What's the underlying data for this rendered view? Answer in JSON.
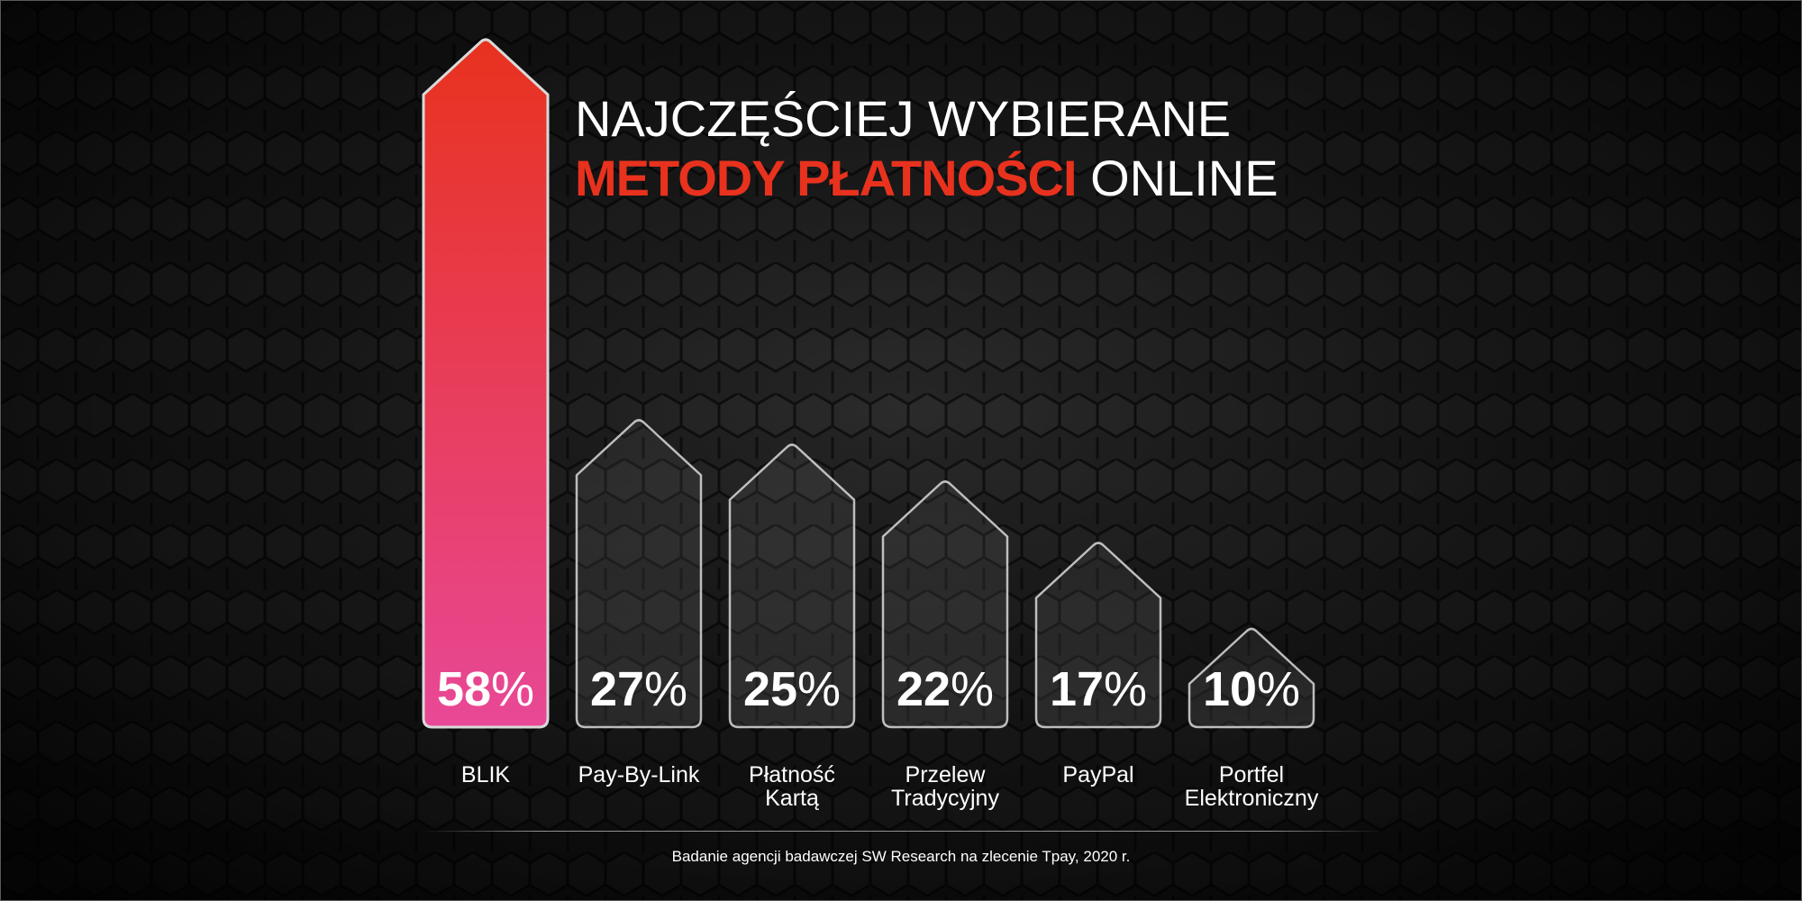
{
  "title": {
    "line1": "NAJCZĘŚCIEJ WYBIERANE",
    "line2_accent": "METODY PŁATNOŚCI",
    "line2_plain": "ONLINE"
  },
  "source_note": "Badanie agencji badawczej SW Research na zlecenie Tpay, 2020 r.",
  "colors": {
    "accent": "#e8321e",
    "highlight_top": "#e8321e",
    "highlight_bottom": "#e84896",
    "bar_outline": "#d9d9d9",
    "text": "#ffffff"
  },
  "chart_data": {
    "type": "bar",
    "categories": [
      [
        "BLIK"
      ],
      [
        "Pay-By-Link"
      ],
      [
        "Płatność",
        "Kartą"
      ],
      [
        "Przelew",
        "Tradycyjny"
      ],
      [
        "PayPal"
      ],
      [
        "Portfel",
        "Elektroniczny"
      ]
    ],
    "values": [
      58,
      27,
      25,
      22,
      17,
      10
    ],
    "value_suffix": "%",
    "highlighted_index": 0,
    "ylim": [
      0,
      58
    ],
    "grid": false,
    "legend": "none"
  }
}
